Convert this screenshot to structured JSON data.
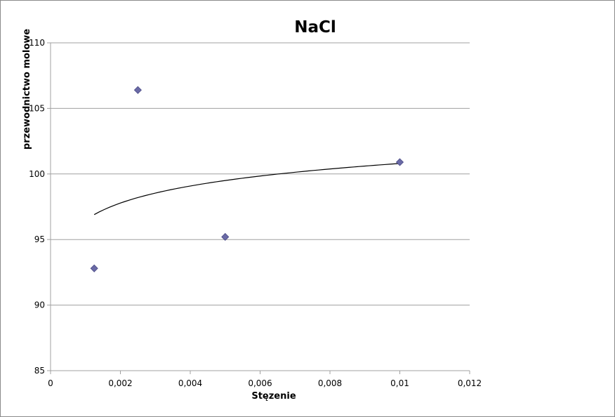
{
  "chart_data": {
    "type": "scatter",
    "title": "NaCl",
    "xlabel": "Stęzenie",
    "ylabel": "przewodnictwo molowe",
    "xlim": [
      0,
      0.012
    ],
    "ylim": [
      85,
      110
    ],
    "x_ticks": [
      0,
      0.002,
      0.004,
      0.006,
      0.008,
      0.01,
      0.012
    ],
    "x_tick_labels": [
      "0",
      "0,002",
      "0,004",
      "0,006",
      "0,008",
      "0,01",
      "0,012"
    ],
    "y_ticks": [
      85,
      90,
      95,
      100,
      105,
      110
    ],
    "y_tick_labels": [
      "85",
      "90",
      "95",
      "100",
      "105",
      "110"
    ],
    "grid": "horizontal",
    "legend": "none",
    "series": [
      {
        "marker": "diamond",
        "color": "#6a6aa6",
        "x": [
          0.00125,
          0.0025,
          0.005,
          0.01
        ],
        "y": [
          92.8,
          106.4,
          95.2,
          100.9
        ]
      }
    ],
    "trendline": {
      "type": "logarithmic",
      "color": "#000000",
      "x_range": [
        0.00125,
        0.01
      ],
      "y_at_start": 96.9,
      "y_at_end": 100.8
    }
  }
}
